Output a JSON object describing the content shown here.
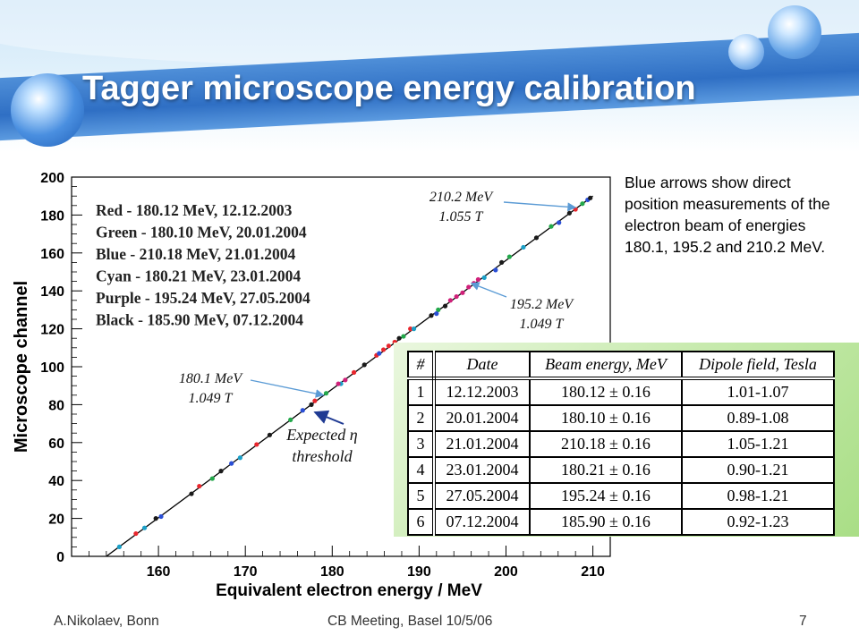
{
  "slide": {
    "title": "Tagger microscope energy calibration",
    "side_note": "Blue arrows show direct position measurements of the electron beam of energies 180.1, 195.2 and 210.2 MeV.",
    "footer": {
      "left": "A.Nikolaev, Bonn",
      "center": "CB Meeting, Basel 10/5/06",
      "right": "7"
    },
    "colors": {
      "band": "#2f6fc4",
      "title_text": "#ffffff",
      "table_bg": "#b8e39a",
      "arrow": "#5b9bd5"
    }
  },
  "table": {
    "headers": [
      "#",
      "Date",
      "Beam energy, MeV",
      "Dipole field, Tesla"
    ],
    "rows": [
      [
        "1",
        "12.12.2003",
        "180.12 ± 0.16",
        "1.01-1.07"
      ],
      [
        "2",
        "20.01.2004",
        "180.10 ± 0.16",
        "0.89-1.08"
      ],
      [
        "3",
        "21.01.2004",
        "210.18 ± 0.16",
        "1.05-1.21"
      ],
      [
        "4",
        "23.01.2004",
        "180.21 ± 0.16",
        "0.90-1.21"
      ],
      [
        "5",
        "27.05.2004",
        "195.24 ± 0.16",
        "0.98-1.21"
      ],
      [
        "6",
        "07.12.2004",
        "185.90 ± 0.16",
        "0.92-1.23"
      ]
    ]
  },
  "chart_data": {
    "type": "scatter",
    "title": "",
    "xlabel": "Equivalent electron energy / MeV",
    "ylabel": "Microscope channel",
    "xlim": [
      150,
      212
    ],
    "ylim": [
      0,
      200
    ],
    "x_ticks": [
      160,
      170,
      180,
      190,
      200,
      210
    ],
    "y_ticks": [
      0,
      20,
      40,
      60,
      80,
      100,
      120,
      140,
      160,
      180,
      200
    ],
    "grid": false,
    "legend_text": [
      "Red    - 180.12 MeV, 12.12.2003",
      "Green - 180.10 MeV, 20.01.2004",
      "Blue   - 210.18 MeV, 21.01.2004",
      "Cyan   - 180.21 MeV, 23.01.2004",
      "Purple - 195.24 MeV, 27.05.2004",
      "Black  - 185.90 MeV, 07.12.2004"
    ],
    "fit_line": {
      "x": [
        154.0,
        210.0
      ],
      "y": [
        0,
        190
      ],
      "color": "#000000"
    },
    "series": [
      {
        "name": "Red",
        "color": "#e8262d",
        "points": [
          [
            157.4,
            12
          ],
          [
            164.7,
            37
          ],
          [
            171.3,
            59
          ],
          [
            178.0,
            82
          ],
          [
            182.5,
            97
          ],
          [
            185.1,
            106
          ],
          [
            185.9,
            109
          ],
          [
            186.5,
            111
          ],
          [
            187.2,
            113
          ],
          [
            189.0,
            120
          ],
          [
            208.0,
            183
          ]
        ]
      },
      {
        "name": "Green",
        "color": "#22a84a",
        "points": [
          [
            166.2,
            41
          ],
          [
            175.2,
            72
          ],
          [
            179.3,
            86
          ],
          [
            188.2,
            116
          ],
          [
            192.2,
            130
          ],
          [
            200.4,
            158
          ],
          [
            205.2,
            174
          ],
          [
            208.8,
            186
          ]
        ]
      },
      {
        "name": "Blue",
        "color": "#2a4fd6",
        "points": [
          [
            160.3,
            21
          ],
          [
            168.4,
            49
          ],
          [
            176.6,
            77
          ],
          [
            185.4,
            107
          ],
          [
            192.0,
            128
          ],
          [
            198.8,
            151
          ],
          [
            206.1,
            176
          ],
          [
            209.4,
            188
          ]
        ]
      },
      {
        "name": "Cyan",
        "color": "#1aa0c8",
        "points": [
          [
            155.5,
            5
          ],
          [
            158.4,
            15
          ],
          [
            169.4,
            52
          ],
          [
            181.0,
            91
          ],
          [
            189.4,
            120
          ],
          [
            197.5,
            147
          ],
          [
            202.0,
            163
          ]
        ]
      },
      {
        "name": "Purple",
        "color": "#d0207a",
        "points": [
          [
            180.7,
            91
          ],
          [
            181.5,
            93
          ],
          [
            193.6,
            135
          ],
          [
            194.3,
            137
          ],
          [
            195.0,
            139
          ],
          [
            195.7,
            142
          ],
          [
            196.3,
            144
          ],
          [
            196.8,
            146
          ]
        ]
      },
      {
        "name": "Black",
        "color": "#1a1a1a",
        "points": [
          [
            159.7,
            20
          ],
          [
            163.8,
            33
          ],
          [
            167.2,
            45
          ],
          [
            172.8,
            64
          ],
          [
            177.6,
            80
          ],
          [
            183.7,
            101
          ],
          [
            187.7,
            115
          ],
          [
            191.4,
            127
          ],
          [
            193.0,
            132
          ],
          [
            199.5,
            155
          ],
          [
            203.5,
            168
          ],
          [
            207.3,
            181
          ],
          [
            209.7,
            189
          ]
        ]
      }
    ],
    "annotations": [
      {
        "id": "a210",
        "lines": [
          "210.2 MeV",
          "1.055 T"
        ],
        "arrow_to": [
          208.0,
          184
        ]
      },
      {
        "id": "a195",
        "lines": [
          "195.2 MeV",
          "1.049 T"
        ],
        "arrow_to": [
          196.0,
          144
        ]
      },
      {
        "id": "a180",
        "lines": [
          "180.1 MeV",
          "1.049 T"
        ],
        "arrow_to": [
          179.0,
          85
        ]
      },
      {
        "id": "eta",
        "lines": [
          "Expected η",
          "threshold"
        ],
        "arrow_to": [
          178.0,
          76
        ]
      }
    ]
  }
}
